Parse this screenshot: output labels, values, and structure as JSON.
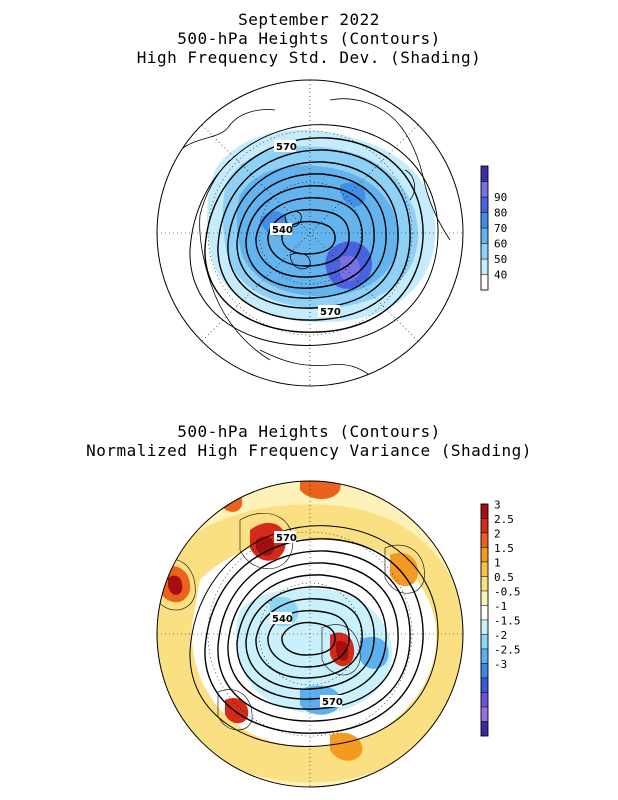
{
  "top_panel": {
    "title_lines": [
      "September 2022",
      "500-hPa Heights (Contours)",
      "High Frequency Std. Dev. (Shading)"
    ],
    "contour_labels": [
      "570",
      "540",
      "570"
    ],
    "colorbar": {
      "ticks": [
        "40",
        "50",
        "60",
        "70",
        "80",
        "90"
      ],
      "colors": [
        "#ffffff",
        "#c6ecfb",
        "#8fd1f6",
        "#63b3ef",
        "#3f8fe8",
        "#4a62e0",
        "#7a70e6",
        "#3b2fa8"
      ]
    }
  },
  "bottom_panel": {
    "title_lines": [
      "500-hPa Heights (Contours)",
      "Normalized High Frequency Variance (Shading)"
    ],
    "contour_labels": [
      "570",
      "540",
      "570"
    ],
    "colorbar": {
      "ticks": [
        "3",
        "2.5",
        "2",
        "1.5",
        "1",
        "0.5",
        "-0.5",
        "-1",
        "-1.5",
        "-2",
        "-2.5",
        "-3"
      ],
      "colors": [
        "#a50f0f",
        "#d42a1a",
        "#e9631c",
        "#f59a20",
        "#f8c247",
        "#fbe083",
        "#fff2b8",
        "#ffffff",
        "#c9f0fb",
        "#8ed6f6",
        "#5db0ef",
        "#3d86e4",
        "#3b58d8",
        "#6b52db",
        "#9b6fe0",
        "#3a2aa0"
      ]
    }
  }
}
